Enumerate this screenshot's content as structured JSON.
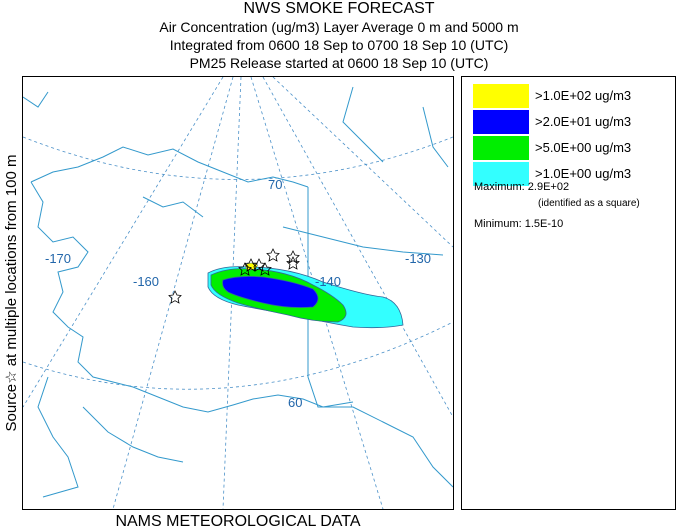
{
  "header": {
    "title": "NWS SMOKE FORECAST",
    "line2": "Air Concentration (ug/m3) Layer Average    0 m and  5000 m",
    "line3": "Integrated from 0600 18 Sep to 0700 18 Sep 10 (UTC)",
    "line4": "PM25 Release started at 0600 18 Sep 10 (UTC)"
  },
  "side_label": "Source☆ at multiple locations   from   100 m",
  "footer": "NAMS METEOROLOGICAL DATA",
  "map": {
    "lon_labels": [
      "-170",
      "-160",
      "-140",
      "-130"
    ],
    "lat_labels": [
      "70",
      "60"
    ],
    "colors": {
      "land_outline": "#3399cc",
      "grid": "#4a90c8",
      "level1": "#33ffff",
      "level2": "#00ee00",
      "level3": "#0000ff",
      "level4": "#ffff00"
    }
  },
  "legend": {
    "items": [
      {
        "label": ">1.0E+02 ug/m3",
        "color": "#ffff00"
      },
      {
        "label": ">2.0E+01 ug/m3",
        "color": "#0000ff"
      },
      {
        "label": ">5.0E+00 ug/m3",
        "color": "#00ee00"
      },
      {
        "label": ">1.0E+00 ug/m3",
        "color": "#33ffff"
      }
    ],
    "maximum": "Maximum: 2.9E+02",
    "maximum_note": "(identified as a square)",
    "minimum": "Minimum: 1.5E-10"
  }
}
